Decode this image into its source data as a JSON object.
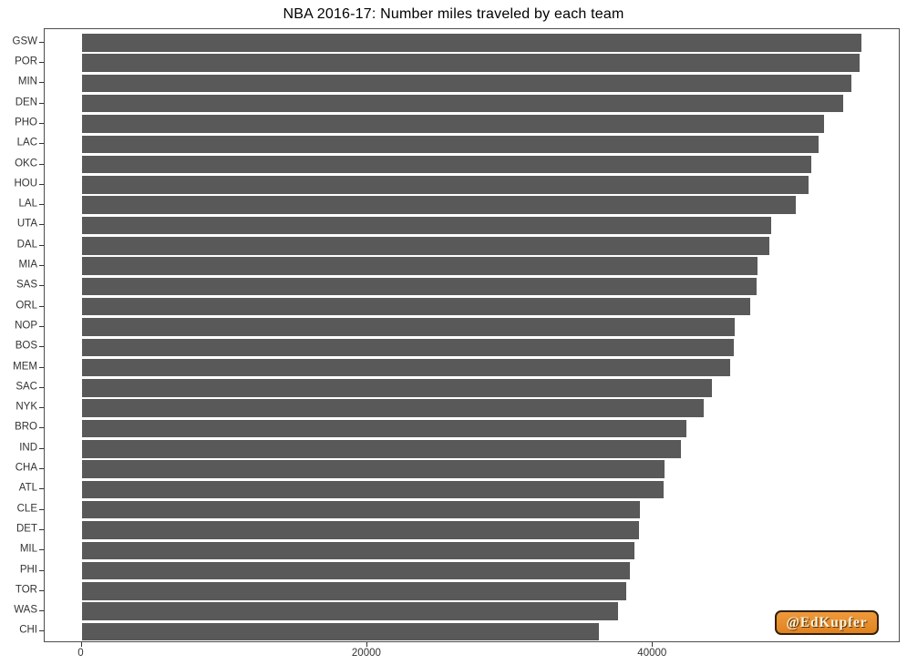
{
  "chart_data": {
    "type": "bar",
    "orientation": "horizontal",
    "title": "NBA 2016-17: Number miles traveled by each team",
    "xlabel": "",
    "ylabel": "",
    "categories": [
      "GSW",
      "POR",
      "MIN",
      "DEN",
      "PHO",
      "LAC",
      "OKC",
      "HOU",
      "LAL",
      "UTA",
      "DAL",
      "MIA",
      "SAS",
      "ORL",
      "NOP",
      "BOS",
      "MEM",
      "SAC",
      "NYK",
      "BRO",
      "IND",
      "CHA",
      "ATL",
      "CLE",
      "DET",
      "MIL",
      "PHI",
      "TOR",
      "WAS",
      "CHI"
    ],
    "values": [
      54600,
      54450,
      53900,
      53300,
      52000,
      51600,
      51100,
      50900,
      50000,
      48300,
      48150,
      47300,
      47250,
      46800,
      45700,
      45650,
      45400,
      44100,
      43550,
      42350,
      41950,
      40800,
      40750,
      39100,
      39050,
      38700,
      38400,
      38100,
      37550,
      36200
    ],
    "x_ticks": [
      0,
      20000,
      40000
    ],
    "xlim": [
      -2600,
      57350
    ],
    "grid": false,
    "legend": false,
    "bar_color": "#595959",
    "panel_border_color": "#4d4d4d",
    "axis_text_color": "#333333"
  },
  "watermark": {
    "text": "@EdKupfer",
    "bg_color": "#e8872a",
    "text_color": "#fdf3d7",
    "border_color": "#33200a"
  }
}
